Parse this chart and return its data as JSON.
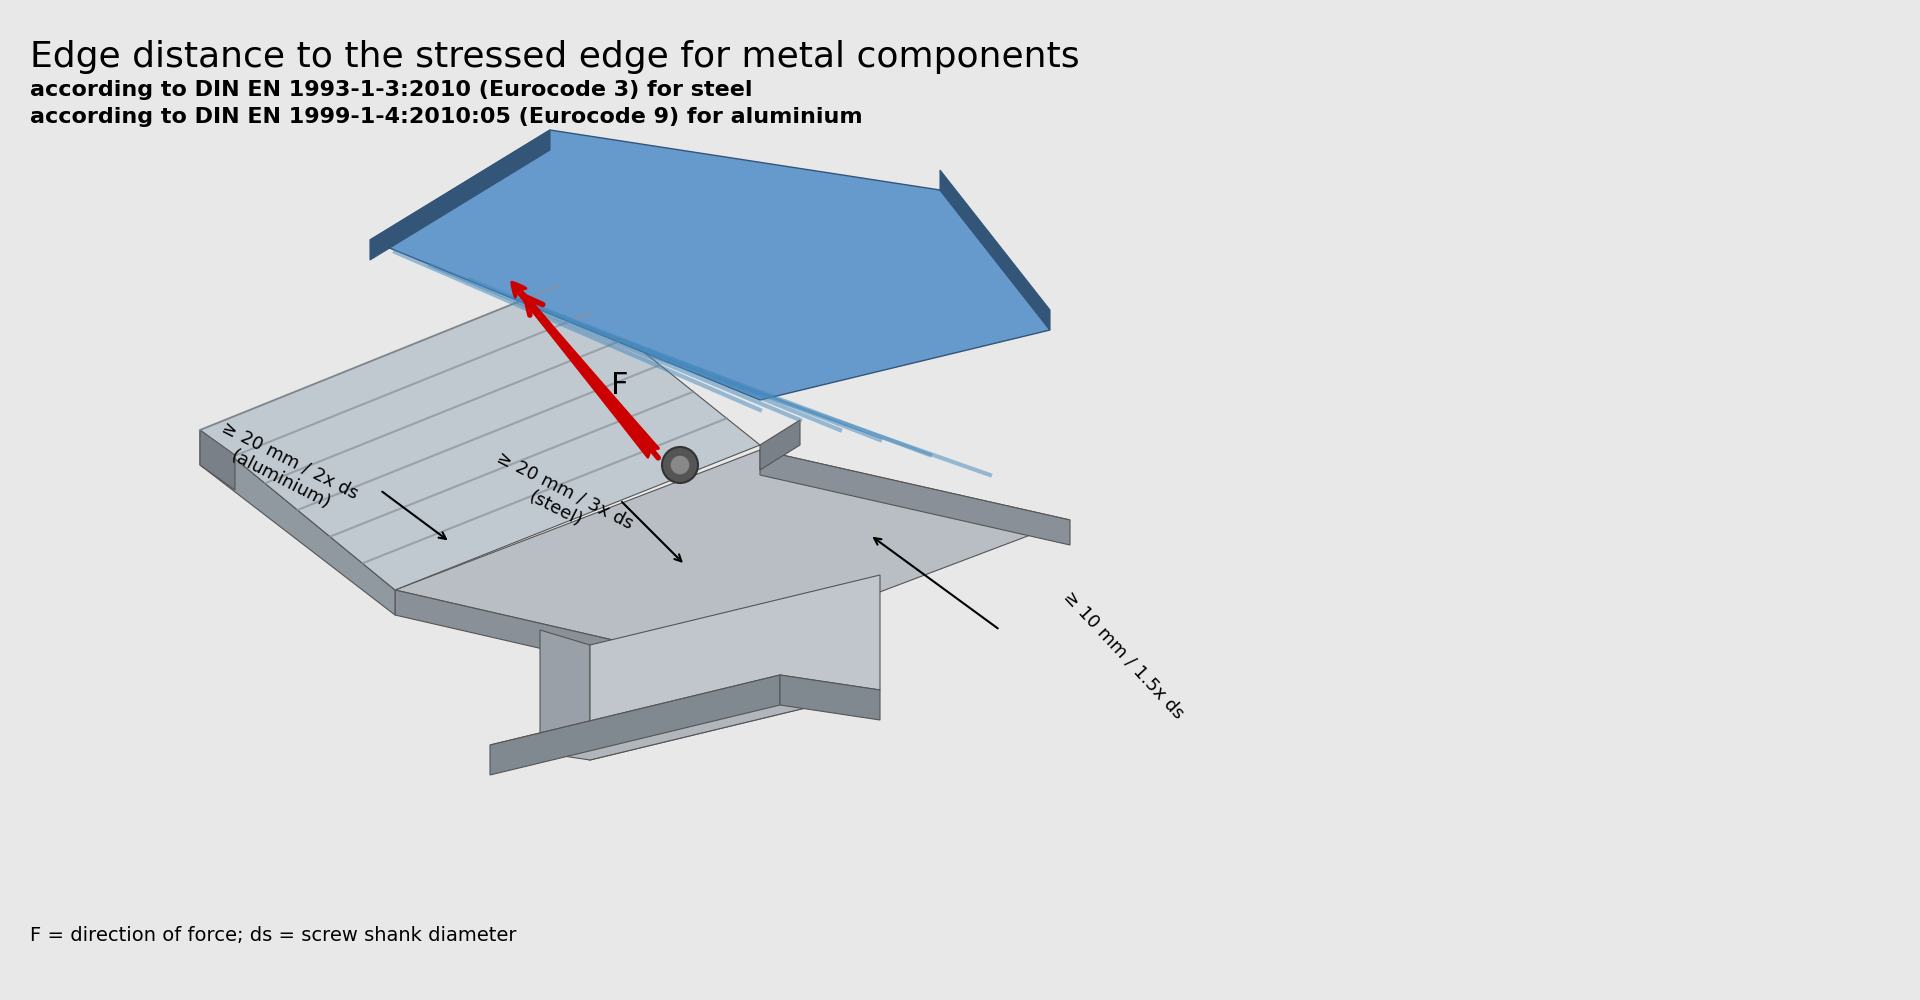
{
  "title": "Edge distance to the stressed edge for metal components",
  "subtitle1": "according to DIN EN 1993-1-3:2010 (Eurocode 3) for steel",
  "subtitle2": "according to DIN EN 1999-1-4:2010:05 (Eurocode 9) for aluminium",
  "footnote": "F = direction of force; ds = screw shank diameter",
  "background_color": "#e8e8e8",
  "label_aluminium": "≥ 20 mm / 2x ds\n(aluminium)",
  "label_steel_edge": "≥ 20 mm / 3x ds\n(steel)",
  "label_right": "≥ 10 mm / 1.5x ds",
  "label_F": "F",
  "steel_color": "#a0a8b0",
  "steel_dark": "#7a8088",
  "steel_darker": "#5a6068",
  "blue_color": "#6699cc",
  "blue_dark": "#4477aa",
  "blue_stripe": "#7ab0dd",
  "red_arrow_color": "#cc0000"
}
